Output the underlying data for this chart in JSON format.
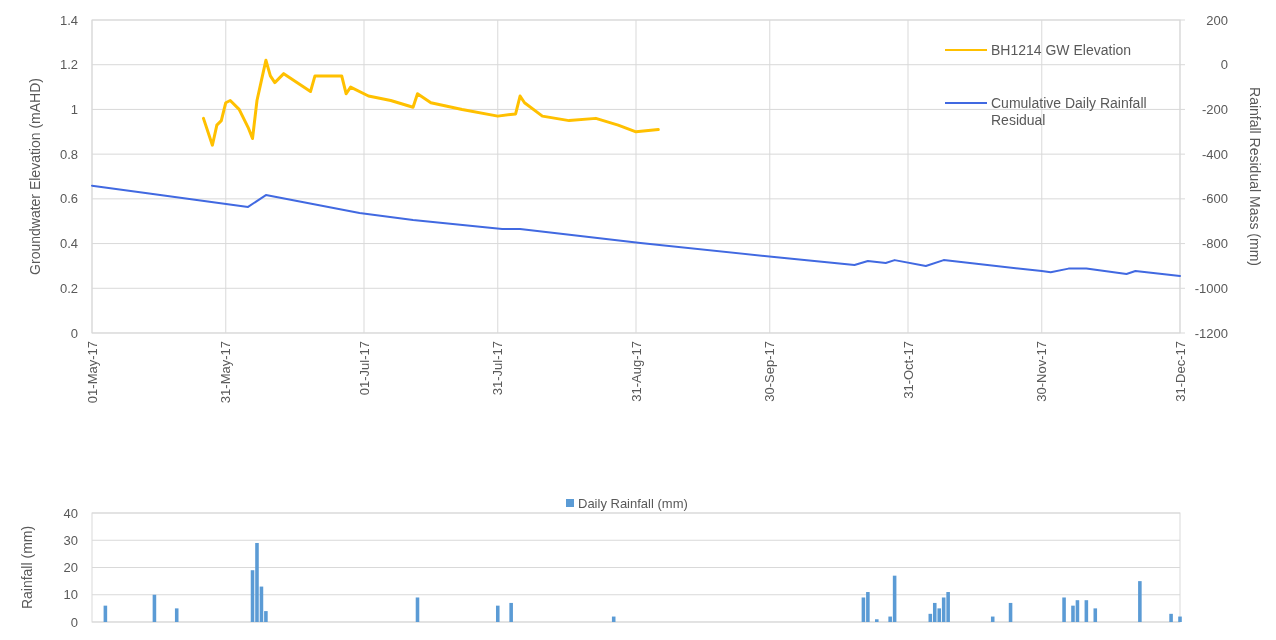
{
  "chart_data": [
    {
      "type": "line",
      "ylabel": "Groundwater Elevation (mAHD)",
      "y2label": "Rainfall Residual Mass (mm)",
      "xlim": [
        "2017-05-01",
        "2017-12-31"
      ],
      "xticks": [
        {
          "value": "2017-05-01",
          "label": "01-May-17"
        },
        {
          "value": "2017-05-31",
          "label": "31-May-17"
        },
        {
          "value": "2017-07-01",
          "label": "01-Jul-17"
        },
        {
          "value": "2017-07-31",
          "label": "31-Jul-17"
        },
        {
          "value": "2017-08-31",
          "label": "31-Aug-17"
        },
        {
          "value": "2017-09-30",
          "label": "30-Sep-17"
        },
        {
          "value": "2017-10-31",
          "label": "31-Oct-17"
        },
        {
          "value": "2017-11-30",
          "label": "30-Nov-17"
        },
        {
          "value": "2017-12-31",
          "label": "31-Dec-17"
        }
      ],
      "ylim": [
        0,
        1.4
      ],
      "yticks": [
        0,
        0.2,
        0.4,
        0.6,
        0.8,
        1,
        1.2,
        1.4
      ],
      "y2lim": [
        -1200,
        200
      ],
      "y2ticks": [
        -1200,
        -1000,
        -800,
        -600,
        -400,
        -200,
        0,
        200
      ],
      "grid": true,
      "legend": "top right",
      "series": [
        {
          "name": "BH1214 GW Elevation",
          "color": "#ffc000",
          "x": [
            "2017-05-26",
            "2017-05-28",
            "2017-05-29",
            "2017-05-30",
            "2017-05-31",
            "2017-06-01",
            "2017-06-03",
            "2017-06-05",
            "2017-06-06",
            "2017-06-07",
            "2017-06-08",
            "2017-06-09",
            "2017-06-10",
            "2017-06-11",
            "2017-06-13",
            "2017-06-19",
            "2017-06-20",
            "2017-06-26",
            "2017-06-27",
            "2017-06-28",
            "2017-07-02",
            "2017-07-07",
            "2017-07-12",
            "2017-07-13",
            "2017-07-16",
            "2017-07-23",
            "2017-07-31",
            "2017-08-04",
            "2017-08-05",
            "2017-08-06",
            "2017-08-10",
            "2017-08-16",
            "2017-08-22",
            "2017-08-27",
            "2017-08-31",
            "2017-09-05"
          ],
          "values": [
            0.96,
            0.84,
            0.93,
            0.95,
            1.03,
            1.04,
            1,
            0.92,
            0.87,
            1.04,
            1.13,
            1.22,
            1.15,
            1.12,
            1.16,
            1.08,
            1.15,
            1.15,
            1.07,
            1.1,
            1.06,
            1.04,
            1.01,
            1.07,
            1.03,
            1,
            0.97,
            0.98,
            1.06,
            1.03,
            0.97,
            0.95,
            0.96,
            0.93,
            0.9,
            0.91
          ]
        },
        {
          "name": "Cumulative Daily Rainfall Residual",
          "color": "#4169e1",
          "axis": "y2",
          "x": [
            "2017-05-01",
            "2017-05-13",
            "2017-06-05",
            "2017-06-09",
            "2017-06-30",
            "2017-07-12",
            "2017-08-01",
            "2017-08-05",
            "2017-09-01",
            "2017-10-01",
            "2017-10-19",
            "2017-10-22",
            "2017-10-26",
            "2017-10-28",
            "2017-11-04",
            "2017-11-08",
            "2017-11-30",
            "2017-12-02",
            "2017-12-06",
            "2017-12-10",
            "2017-12-19",
            "2017-12-21",
            "2017-12-31"
          ],
          "values": [
            -541,
            -574,
            -636,
            -583,
            -663,
            -695,
            -735,
            -735,
            -797,
            -860,
            -896,
            -878,
            -887,
            -874,
            -900,
            -874,
            -923,
            -928,
            -912,
            -912,
            -936,
            -923,
            -945
          ]
        }
      ]
    },
    {
      "type": "bar",
      "ylabel": "Rainfall (mm)",
      "xlim": [
        "2017-05-01",
        "2017-12-31"
      ],
      "ylim": [
        0,
        40
      ],
      "yticks": [
        0,
        10,
        20,
        30,
        40
      ],
      "grid": "y",
      "legend": "top",
      "tick_labels": "y",
      "series": [
        {
          "name": "Daily Rainfall (mm)",
          "color": "#5b9bd5",
          "x": [
            "2017-05-04",
            "2017-05-15",
            "2017-05-20",
            "2017-06-06",
            "2017-06-07",
            "2017-06-08",
            "2017-06-09",
            "2017-07-13",
            "2017-07-31",
            "2017-08-03",
            "2017-08-26",
            "2017-10-21",
            "2017-10-22",
            "2017-10-24",
            "2017-10-27",
            "2017-10-28",
            "2017-11-05",
            "2017-11-06",
            "2017-11-07",
            "2017-11-08",
            "2017-11-09",
            "2017-11-19",
            "2017-11-23",
            "2017-12-05",
            "2017-12-07",
            "2017-12-08",
            "2017-12-10",
            "2017-12-12",
            "2017-12-22",
            "2017-12-29",
            "2017-12-31"
          ],
          "values": [
            6,
            10,
            5,
            19,
            29,
            13,
            4,
            9,
            6,
            7,
            2,
            9,
            11,
            1,
            2,
            17,
            3,
            7,
            5,
            9,
            11,
            2,
            7,
            9,
            6,
            8,
            8,
            5,
            15,
            3,
            2
          ]
        }
      ]
    }
  ]
}
